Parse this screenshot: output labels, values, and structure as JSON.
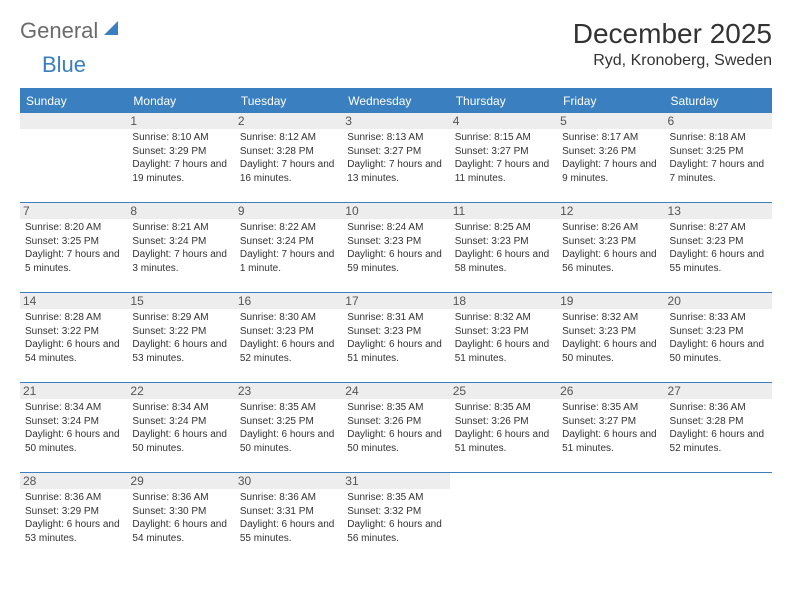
{
  "logo": {
    "part1": "General",
    "part2": "Blue"
  },
  "title": "December 2025",
  "location": "Ryd, Kronoberg, Sweden",
  "weekdays": [
    "Sunday",
    "Monday",
    "Tuesday",
    "Wednesday",
    "Thursday",
    "Friday",
    "Saturday"
  ],
  "colors": {
    "header_bg": "#3a7fc0",
    "header_text": "#ffffff",
    "daynum_bg": "#ededed",
    "border": "#3a7fc0",
    "logo_gray": "#6b6b6b",
    "logo_blue": "#3a7fc0"
  },
  "fonts": {
    "title_size": 28,
    "subtitle_size": 16,
    "header_size": 12,
    "daynum_size": 12,
    "info_size": 10
  },
  "layout": {
    "cols": 7,
    "rows": 5,
    "start_weekday": 1
  },
  "days": [
    {
      "n": 1,
      "sunrise": "8:10 AM",
      "sunset": "3:29 PM",
      "daylight": "7 hours and 19 minutes."
    },
    {
      "n": 2,
      "sunrise": "8:12 AM",
      "sunset": "3:28 PM",
      "daylight": "7 hours and 16 minutes."
    },
    {
      "n": 3,
      "sunrise": "8:13 AM",
      "sunset": "3:27 PM",
      "daylight": "7 hours and 13 minutes."
    },
    {
      "n": 4,
      "sunrise": "8:15 AM",
      "sunset": "3:27 PM",
      "daylight": "7 hours and 11 minutes."
    },
    {
      "n": 5,
      "sunrise": "8:17 AM",
      "sunset": "3:26 PM",
      "daylight": "7 hours and 9 minutes."
    },
    {
      "n": 6,
      "sunrise": "8:18 AM",
      "sunset": "3:25 PM",
      "daylight": "7 hours and 7 minutes."
    },
    {
      "n": 7,
      "sunrise": "8:20 AM",
      "sunset": "3:25 PM",
      "daylight": "7 hours and 5 minutes."
    },
    {
      "n": 8,
      "sunrise": "8:21 AM",
      "sunset": "3:24 PM",
      "daylight": "7 hours and 3 minutes."
    },
    {
      "n": 9,
      "sunrise": "8:22 AM",
      "sunset": "3:24 PM",
      "daylight": "7 hours and 1 minute."
    },
    {
      "n": 10,
      "sunrise": "8:24 AM",
      "sunset": "3:23 PM",
      "daylight": "6 hours and 59 minutes."
    },
    {
      "n": 11,
      "sunrise": "8:25 AM",
      "sunset": "3:23 PM",
      "daylight": "6 hours and 58 minutes."
    },
    {
      "n": 12,
      "sunrise": "8:26 AM",
      "sunset": "3:23 PM",
      "daylight": "6 hours and 56 minutes."
    },
    {
      "n": 13,
      "sunrise": "8:27 AM",
      "sunset": "3:23 PM",
      "daylight": "6 hours and 55 minutes."
    },
    {
      "n": 14,
      "sunrise": "8:28 AM",
      "sunset": "3:22 PM",
      "daylight": "6 hours and 54 minutes."
    },
    {
      "n": 15,
      "sunrise": "8:29 AM",
      "sunset": "3:22 PM",
      "daylight": "6 hours and 53 minutes."
    },
    {
      "n": 16,
      "sunrise": "8:30 AM",
      "sunset": "3:23 PM",
      "daylight": "6 hours and 52 minutes."
    },
    {
      "n": 17,
      "sunrise": "8:31 AM",
      "sunset": "3:23 PM",
      "daylight": "6 hours and 51 minutes."
    },
    {
      "n": 18,
      "sunrise": "8:32 AM",
      "sunset": "3:23 PM",
      "daylight": "6 hours and 51 minutes."
    },
    {
      "n": 19,
      "sunrise": "8:32 AM",
      "sunset": "3:23 PM",
      "daylight": "6 hours and 50 minutes."
    },
    {
      "n": 20,
      "sunrise": "8:33 AM",
      "sunset": "3:23 PM",
      "daylight": "6 hours and 50 minutes."
    },
    {
      "n": 21,
      "sunrise": "8:34 AM",
      "sunset": "3:24 PM",
      "daylight": "6 hours and 50 minutes."
    },
    {
      "n": 22,
      "sunrise": "8:34 AM",
      "sunset": "3:24 PM",
      "daylight": "6 hours and 50 minutes."
    },
    {
      "n": 23,
      "sunrise": "8:35 AM",
      "sunset": "3:25 PM",
      "daylight": "6 hours and 50 minutes."
    },
    {
      "n": 24,
      "sunrise": "8:35 AM",
      "sunset": "3:26 PM",
      "daylight": "6 hours and 50 minutes."
    },
    {
      "n": 25,
      "sunrise": "8:35 AM",
      "sunset": "3:26 PM",
      "daylight": "6 hours and 51 minutes."
    },
    {
      "n": 26,
      "sunrise": "8:35 AM",
      "sunset": "3:27 PM",
      "daylight": "6 hours and 51 minutes."
    },
    {
      "n": 27,
      "sunrise": "8:36 AM",
      "sunset": "3:28 PM",
      "daylight": "6 hours and 52 minutes."
    },
    {
      "n": 28,
      "sunrise": "8:36 AM",
      "sunset": "3:29 PM",
      "daylight": "6 hours and 53 minutes."
    },
    {
      "n": 29,
      "sunrise": "8:36 AM",
      "sunset": "3:30 PM",
      "daylight": "6 hours and 54 minutes."
    },
    {
      "n": 30,
      "sunrise": "8:36 AM",
      "sunset": "3:31 PM",
      "daylight": "6 hours and 55 minutes."
    },
    {
      "n": 31,
      "sunrise": "8:35 AM",
      "sunset": "3:32 PM",
      "daylight": "6 hours and 56 minutes."
    }
  ]
}
